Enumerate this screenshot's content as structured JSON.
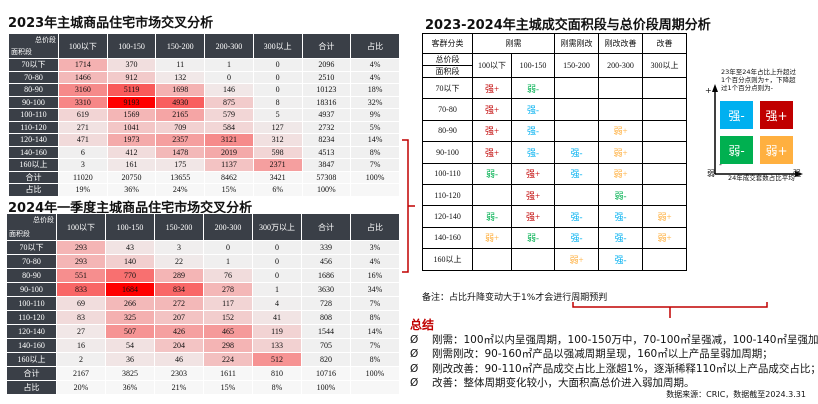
{
  "table2023": {
    "title": "2023年主城商品住宅市场交叉分析",
    "corner_top": "总价段",
    "corner_bottom": "面积段",
    "columns": [
      "100以下",
      "100-150",
      "150-200",
      "200-300",
      "300以上",
      "合计",
      "占比"
    ],
    "rows": [
      [
        "70以下",
        "1714",
        "370",
        "11",
        "1",
        "0",
        "2096",
        "4%"
      ],
      [
        "70-80",
        "1466",
        "912",
        "132",
        "0",
        "0",
        "2510",
        "4%"
      ],
      [
        "80-90",
        "3160",
        "5119",
        "1698",
        "146",
        "0",
        "10123",
        "18%"
      ],
      [
        "90-100",
        "3310",
        "9193",
        "4930",
        "875",
        "8",
        "18316",
        "32%"
      ],
      [
        "100-110",
        "619",
        "1569",
        "2165",
        "579",
        "5",
        "4937",
        "9%"
      ],
      [
        "110-120",
        "271",
        "1041",
        "709",
        "584",
        "127",
        "2732",
        "5%"
      ],
      [
        "120-140",
        "471",
        "1973",
        "2357",
        "3121",
        "312",
        "8234",
        "14%"
      ],
      [
        "140-160",
        "6",
        "412",
        "1478",
        "2019",
        "598",
        "4513",
        "8%"
      ],
      [
        "160以上",
        "3",
        "161",
        "175",
        "1137",
        "2371",
        "3847",
        "7%"
      ],
      [
        "合计",
        "11020",
        "20750",
        "13655",
        "8462",
        "3421",
        "57308",
        "100%"
      ],
      [
        "占比",
        "19%",
        "36%",
        "24%",
        "15%",
        "6%",
        "100%",
        ""
      ]
    ]
  },
  "table2024": {
    "title": "2024年一季度主城商品住宅市场交叉分析",
    "corner_top": "总价段",
    "corner_bottom": "面积段",
    "columns": [
      "100以下",
      "100-150",
      "150-200",
      "200-300",
      "300万以上",
      "合计",
      "占比"
    ],
    "rows": [
      [
        "70以下",
        "293",
        "43",
        "3",
        "0",
        "0",
        "339",
        "3%"
      ],
      [
        "70-80",
        "293",
        "140",
        "22",
        "1",
        "0",
        "456",
        "4%"
      ],
      [
        "80-90",
        "551",
        "770",
        "289",
        "76",
        "0",
        "1686",
        "16%"
      ],
      [
        "90-100",
        "833",
        "1684",
        "834",
        "278",
        "1",
        "3630",
        "34%"
      ],
      [
        "100-110",
        "69",
        "266",
        "272",
        "117",
        "4",
        "728",
        "7%"
      ],
      [
        "110-120",
        "83",
        "325",
        "207",
        "152",
        "41",
        "808",
        "8%"
      ],
      [
        "120-140",
        "27",
        "507",
        "426",
        "465",
        "119",
        "1544",
        "14%"
      ],
      [
        "140-160",
        "16",
        "54",
        "204",
        "298",
        "133",
        "705",
        "7%"
      ],
      [
        "160以上",
        "2",
        "36",
        "46",
        "224",
        "512",
        "820",
        "8%"
      ],
      [
        "合计",
        "2167",
        "3825",
        "2303",
        "1611",
        "810",
        "10716",
        "100%"
      ],
      [
        "占比",
        "20%",
        "36%",
        "21%",
        "15%",
        "8%",
        "100%",
        ""
      ]
    ]
  },
  "cycle": {
    "title": "2023-2024年主城成交面积段与总价段周期分析",
    "customer_label": "客群分类",
    "groups": [
      {
        "label": "刚需",
        "span": 2
      },
      {
        "label": "刚需刚改",
        "span": 1
      },
      {
        "label": "刚改改善",
        "span": 1
      },
      {
        "label": "改善",
        "span": 1
      }
    ],
    "price_label": "总价段",
    "area_label": "面积段",
    "price_bands": [
      "100以下",
      "100-150",
      "150-200",
      "200-300",
      "300以上"
    ],
    "rows": [
      {
        "area": "70以下",
        "cells": [
          "强+",
          "弱-",
          "",
          "",
          ""
        ]
      },
      {
        "area": "70-80",
        "cells": [
          "强+",
          "强-",
          "",
          "",
          ""
        ]
      },
      {
        "area": "80-90",
        "cells": [
          "强+",
          "强-",
          "",
          "弱+",
          ""
        ]
      },
      {
        "area": "90-100",
        "cells": [
          "强+",
          "强-",
          "强-",
          "弱+",
          ""
        ]
      },
      {
        "area": "100-110",
        "cells": [
          "弱-",
          "强+",
          "强-",
          "弱+",
          ""
        ]
      },
      {
        "area": "110-120",
        "cells": [
          "",
          "强+",
          "",
          "弱-",
          ""
        ]
      },
      {
        "area": "120-140",
        "cells": [
          "弱-",
          "强+",
          "强-",
          "强-",
          "弱+"
        ]
      },
      {
        "area": "140-160",
        "cells": [
          "弱+",
          "弱-",
          "强-",
          "强-",
          "弱+"
        ]
      },
      {
        "area": "160以上",
        "cells": [
          "",
          "",
          "弱+",
          "强-",
          ""
        ]
      }
    ],
    "note": "备注：占比升降变动大于1%才会进行周期预判"
  },
  "colors": {
    "强+": "#c00000",
    "强-": "#00b0f0",
    "弱-": "#00b050",
    "弱+": "#ffb040",
    "header": "#3a3f47",
    "heat_max": "#ff0000",
    "accent": "#c00000"
  },
  "legend": {
    "caption": "23年至24年占比上升超过1个百分点则为+，下降超过1个百分点则为-",
    "plus": "+",
    "minus": "-",
    "weak": "弱",
    "strong": "强",
    "x_caption": "24年成交套数占比平均",
    "quadrants": [
      "强-",
      "强+",
      "弱-",
      "弱+"
    ]
  },
  "summary": {
    "heading": "总结",
    "bullet": "Ø",
    "items": [
      "刚需：100㎡以内呈强周期，100-150万中，70-100㎡呈强减，100-140㎡呈强加；",
      "刚需刚改：90-160㎡产品以强减周期呈现，160㎡以上产品呈弱加周期；",
      "刚改改善：90-110㎡产品成交占比上涨超1%，逐渐稀释110㎡以上产品成交占比；",
      "改善：整体周期变化较小，大面积高总价进入弱加周期。"
    ]
  },
  "source": "数据来源：CRIC，数据截至2024.3.31"
}
